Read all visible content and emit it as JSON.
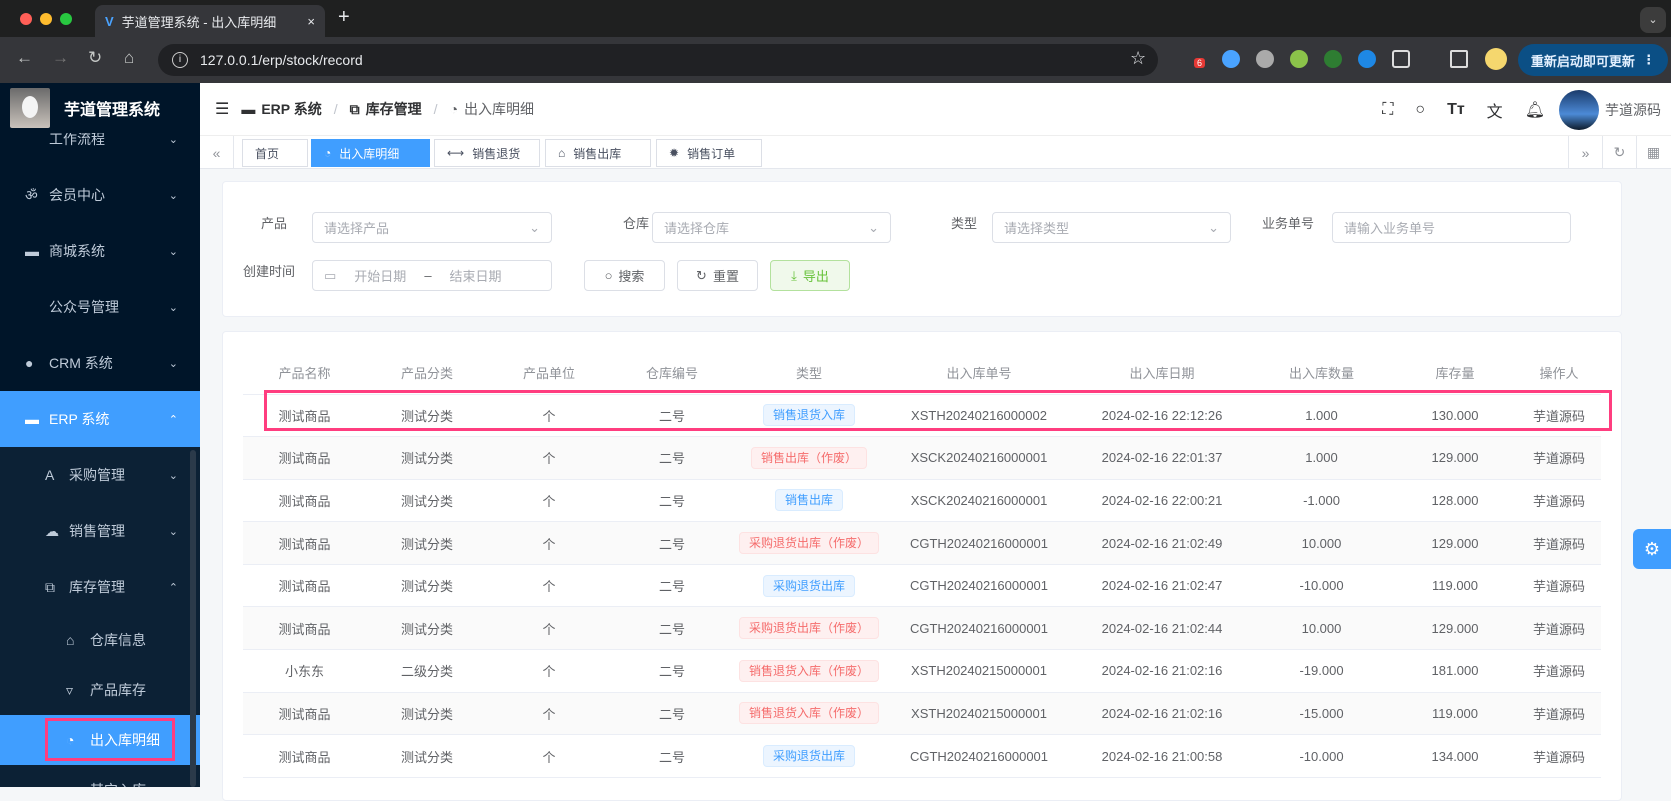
{
  "browser": {
    "tab_title": "芋道管理系统 - 出入库明细",
    "url": "127.0.0.1/erp/stock/record",
    "update_label": "重新启动即可更新",
    "ext_badge": "6"
  },
  "app": {
    "title": "芋道管理系统",
    "user": "芋道源码"
  },
  "breadcrumb": [
    "ERP 系统",
    "库存管理",
    "出入库明细"
  ],
  "sidebar": {
    "items": [
      {
        "label": "工作流程",
        "level": 1,
        "icon": "workflow-icon",
        "chev": "⌄"
      },
      {
        "label": "会员中心",
        "level": 1,
        "icon": "bike-icon",
        "chev": "⌄"
      },
      {
        "label": "商城系统",
        "level": 1,
        "icon": "shop-icon",
        "chev": "⌄"
      },
      {
        "label": "公众号管理",
        "level": 1,
        "icon": "",
        "chev": "⌄"
      },
      {
        "label": "CRM 系统",
        "level": 1,
        "icon": "user-icon",
        "chev": "⌄"
      },
      {
        "label": "ERP 系统",
        "level": 1,
        "icon": "store-icon",
        "chev": "⌃",
        "active": true
      },
      {
        "label": "采购管理",
        "level": 2,
        "icon": "purchase-icon",
        "chev": "⌄"
      },
      {
        "label": "销售管理",
        "level": 2,
        "icon": "cloud-icon",
        "chev": "⌄"
      },
      {
        "label": "库存管理",
        "level": 2,
        "icon": "stock-icon",
        "chev": "⌃"
      },
      {
        "label": "仓库信息",
        "level": 3,
        "icon": "home-icon"
      },
      {
        "label": "产品库存",
        "level": 3,
        "icon": "cup-icon"
      },
      {
        "label": "出入库明细",
        "level": 3,
        "icon": "signal-icon",
        "active": true
      },
      {
        "label": "其它入库",
        "level": 3,
        "icon": "search-icon"
      }
    ]
  },
  "tags": [
    {
      "label": "首页"
    },
    {
      "label": "出入库明细",
      "active": true
    },
    {
      "label": "销售退货"
    },
    {
      "label": "销售出库"
    },
    {
      "label": "销售订单"
    }
  ],
  "filters": {
    "product": {
      "label": "产品",
      "placeholder": "请选择产品"
    },
    "warehouse": {
      "label": "仓库",
      "placeholder": "请选择仓库"
    },
    "type": {
      "label": "类型",
      "placeholder": "请选择类型"
    },
    "biz_no": {
      "label": "业务单号",
      "placeholder": "请输入业务单号"
    },
    "created": {
      "label": "创建时间",
      "start": "开始日期",
      "sep": "–",
      "end": "结束日期"
    },
    "search": "搜索",
    "reset": "重置",
    "export": "导出"
  },
  "table": {
    "columns": [
      "产品名称",
      "产品分类",
      "产品单位",
      "仓库编号",
      "类型",
      "出入库单号",
      "出入库日期",
      "出入库数量",
      "库存量",
      "操作人"
    ],
    "rows": [
      [
        "测试商品",
        "测试分类",
        "个",
        "二号",
        {
          "text": "销售退货入库",
          "color": "primary"
        },
        "XSTH20240216000002",
        "2024-02-16 22:12:26",
        "1.000",
        "130.000",
        "芋道源码"
      ],
      [
        "测试商品",
        "测试分类",
        "个",
        "二号",
        {
          "text": "销售出库（作废）",
          "color": "danger"
        },
        "XSCK20240216000001",
        "2024-02-16 22:01:37",
        "1.000",
        "129.000",
        "芋道源码"
      ],
      [
        "测试商品",
        "测试分类",
        "个",
        "二号",
        {
          "text": "销售出库",
          "color": "primary"
        },
        "XSCK20240216000001",
        "2024-02-16 22:00:21",
        "-1.000",
        "128.000",
        "芋道源码"
      ],
      [
        "测试商品",
        "测试分类",
        "个",
        "二号",
        {
          "text": "采购退货出库（作废）",
          "color": "danger"
        },
        "CGTH20240216000001",
        "2024-02-16 21:02:49",
        "10.000",
        "129.000",
        "芋道源码"
      ],
      [
        "测试商品",
        "测试分类",
        "个",
        "二号",
        {
          "text": "采购退货出库",
          "color": "primary"
        },
        "CGTH20240216000001",
        "2024-02-16 21:02:47",
        "-10.000",
        "119.000",
        "芋道源码"
      ],
      [
        "测试商品",
        "测试分类",
        "个",
        "二号",
        {
          "text": "采购退货出库（作废）",
          "color": "danger"
        },
        "CGTH20240216000001",
        "2024-02-16 21:02:44",
        "10.000",
        "129.000",
        "芋道源码"
      ],
      [
        "小东东",
        "二级分类",
        "个",
        "二号",
        {
          "text": "销售退货入库（作废）",
          "color": "danger"
        },
        "XSTH20240215000001",
        "2024-02-16 21:02:16",
        "-19.000",
        "181.000",
        "芋道源码"
      ],
      [
        "测试商品",
        "测试分类",
        "个",
        "二号",
        {
          "text": "销售退货入库（作废）",
          "color": "danger"
        },
        "XSTH20240215000001",
        "2024-02-16 21:02:16",
        "-15.000",
        "119.000",
        "芋道源码"
      ],
      [
        "测试商品",
        "测试分类",
        "个",
        "二号",
        {
          "text": "采购退货出库",
          "color": "primary"
        },
        "CGTH20240216000001",
        "2024-02-16 21:00:58",
        "-10.000",
        "134.000",
        "芋道源码"
      ]
    ]
  },
  "colors": {
    "accent": "#409eff",
    "sidebar": "#001529",
    "highlight": "#ff3d7f"
  }
}
